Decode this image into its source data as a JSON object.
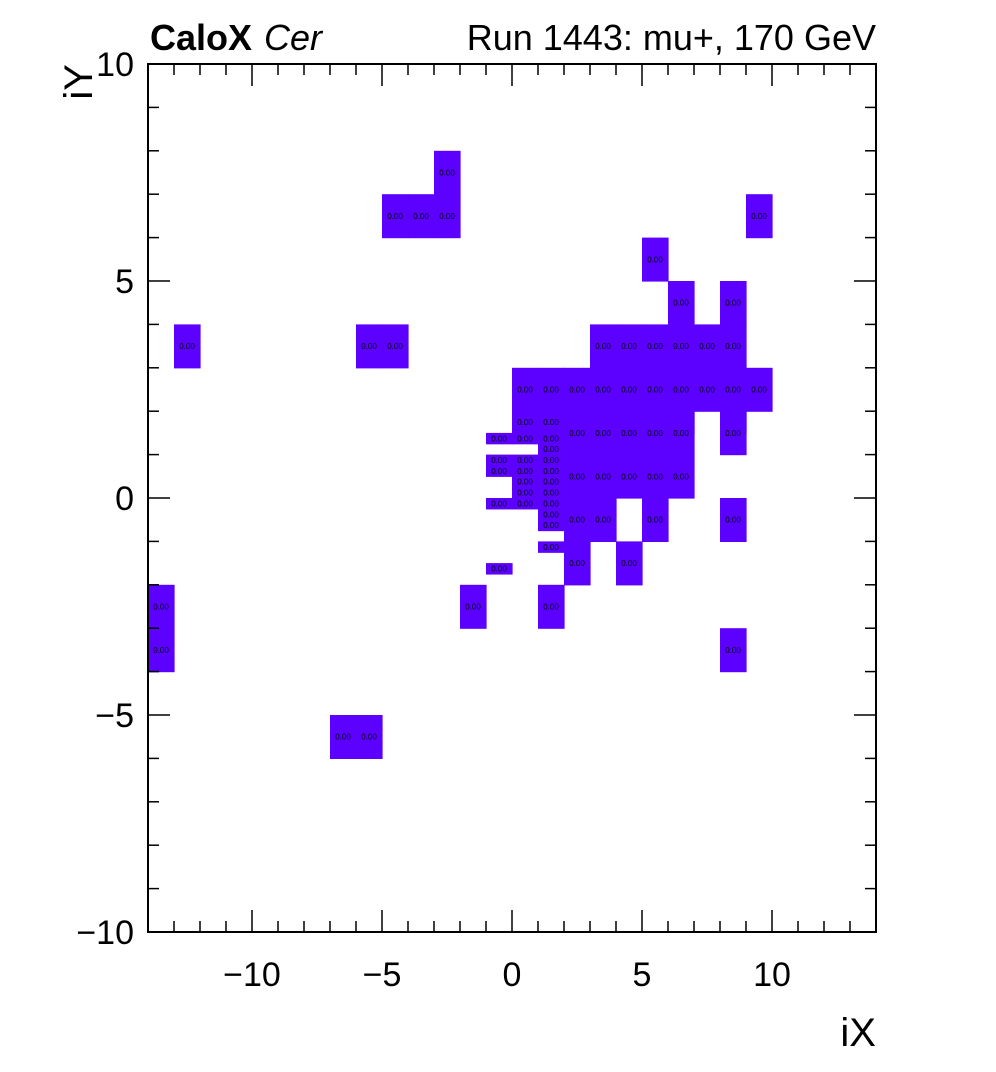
{
  "header": {
    "brand": "CaloX",
    "channel": "Cer",
    "run": "Run 1443: mu+, 170 GeV"
  },
  "colors": {
    "cell": "#5c00ff",
    "axis": "#000000",
    "background": "#ffffff"
  },
  "chart_data": {
    "type": "heatmap",
    "xlabel": "iX",
    "ylabel": "iY",
    "xlim": [
      -14,
      14
    ],
    "ylim": [
      -10,
      10
    ],
    "xticks": [
      {
        "value": -10,
        "label": "−10"
      },
      {
        "value": -5,
        "label": "−5"
      },
      {
        "value": 0,
        "label": "0"
      },
      {
        "value": 5,
        "label": "5"
      },
      {
        "value": 10,
        "label": "10"
      }
    ],
    "yticks": [
      {
        "value": -10,
        "label": "−10"
      },
      {
        "value": -5,
        "label": "−5"
      },
      {
        "value": 0,
        "label": "0"
      },
      {
        "value": 5,
        "label": "5"
      },
      {
        "value": 10,
        "label": "10"
      }
    ],
    "grid": false,
    "legend": "none",
    "cells": [
      {
        "x0": -3,
        "x1": -2,
        "y0": 7,
        "y1": 8,
        "label": "0.00"
      },
      {
        "x0": -5,
        "x1": -4,
        "y0": 6,
        "y1": 7,
        "label": "0.00"
      },
      {
        "x0": -4,
        "x1": -3,
        "y0": 6,
        "y1": 7,
        "label": "0.00"
      },
      {
        "x0": -3,
        "x1": -2,
        "y0": 6,
        "y1": 7,
        "label": "0.00"
      },
      {
        "x0": 9,
        "x1": 10,
        "y0": 6,
        "y1": 7,
        "label": "0.00"
      },
      {
        "x0": 5,
        "x1": 6,
        "y0": 5,
        "y1": 6,
        "label": "0.00"
      },
      {
        "x0": 6,
        "x1": 7,
        "y0": 4,
        "y1": 5,
        "label": "0.00"
      },
      {
        "x0": 8,
        "x1": 9,
        "y0": 4,
        "y1": 5,
        "label": "0.00"
      },
      {
        "x0": -13,
        "x1": -12,
        "y0": 3,
        "y1": 4,
        "label": "0.00"
      },
      {
        "x0": -6,
        "x1": -5,
        "y0": 3,
        "y1": 4,
        "label": "0.00"
      },
      {
        "x0": -5,
        "x1": -4,
        "y0": 3,
        "y1": 4,
        "label": "0.00"
      },
      {
        "x0": 3,
        "x1": 4,
        "y0": 3,
        "y1": 4,
        "label": "0.00"
      },
      {
        "x0": 4,
        "x1": 5,
        "y0": 3,
        "y1": 4,
        "label": "0.00"
      },
      {
        "x0": 5,
        "x1": 6,
        "y0": 3,
        "y1": 4,
        "label": "0.00"
      },
      {
        "x0": 6,
        "x1": 7,
        "y0": 3,
        "y1": 4,
        "label": "0.00"
      },
      {
        "x0": 7,
        "x1": 8,
        "y0": 3,
        "y1": 4,
        "label": "0.00"
      },
      {
        "x0": 8,
        "x1": 9,
        "y0": 3,
        "y1": 4,
        "label": "0.00"
      },
      {
        "x0": 0,
        "x1": 1,
        "y0": 2,
        "y1": 3,
        "label": "0.00"
      },
      {
        "x0": 1,
        "x1": 2,
        "y0": 2,
        "y1": 3,
        "label": "0.00"
      },
      {
        "x0": 2,
        "x1": 3,
        "y0": 2,
        "y1": 3,
        "label": "0.00"
      },
      {
        "x0": 3,
        "x1": 4,
        "y0": 2,
        "y1": 3,
        "label": "0.00"
      },
      {
        "x0": 4,
        "x1": 5,
        "y0": 2,
        "y1": 3,
        "label": "0.00"
      },
      {
        "x0": 5,
        "x1": 6,
        "y0": 2,
        "y1": 3,
        "label": "0.00"
      },
      {
        "x0": 6,
        "x1": 7,
        "y0": 2,
        "y1": 3,
        "label": "0.00"
      },
      {
        "x0": 7,
        "x1": 8,
        "y0": 2,
        "y1": 3,
        "label": "0.00"
      },
      {
        "x0": 8,
        "x1": 9,
        "y0": 2,
        "y1": 3,
        "label": "0.00"
      },
      {
        "x0": 9,
        "x1": 10,
        "y0": 2,
        "y1": 3,
        "label": "0.00"
      },
      {
        "x0": 0,
        "x1": 1,
        "y0": 1.5,
        "y1": 2,
        "label": "0.00"
      },
      {
        "x0": 1,
        "x1": 2,
        "y0": 1.5,
        "y1": 2,
        "label": "0.00"
      },
      {
        "x0": 2,
        "x1": 3,
        "y0": 1.5,
        "y1": 2,
        "label": ""
      },
      {
        "x0": 3,
        "x1": 4,
        "y0": 1.5,
        "y1": 2,
        "label": ""
      },
      {
        "x0": 4,
        "x1": 5,
        "y0": 1.5,
        "y1": 2,
        "label": ""
      },
      {
        "x0": 5,
        "x1": 6,
        "y0": 1.5,
        "y1": 2,
        "label": ""
      },
      {
        "x0": 6,
        "x1": 7,
        "y0": 1.5,
        "y1": 2,
        "label": ""
      },
      {
        "x0": 8,
        "x1": 9,
        "y0": 1.5,
        "y1": 2,
        "label": ""
      },
      {
        "x0": 2,
        "x1": 3,
        "y0": 1,
        "y1": 2,
        "label": "0.00"
      },
      {
        "x0": 3,
        "x1": 4,
        "y0": 1,
        "y1": 2,
        "label": "0.00"
      },
      {
        "x0": 4,
        "x1": 5,
        "y0": 1,
        "y1": 2,
        "label": "0.00"
      },
      {
        "x0": 5,
        "x1": 6,
        "y0": 1,
        "y1": 2,
        "label": "0.00"
      },
      {
        "x0": 6,
        "x1": 7,
        "y0": 1,
        "y1": 2,
        "label": "0.00"
      },
      {
        "x0": 8,
        "x1": 9,
        "y0": 1,
        "y1": 2,
        "label": "0.00"
      },
      {
        "x0": -1,
        "x1": 0,
        "y0": 1.25,
        "y1": 1.5,
        "label": "0.00"
      },
      {
        "x0": 0,
        "x1": 1,
        "y0": 1.25,
        "y1": 1.5,
        "label": "0.00"
      },
      {
        "x0": 1,
        "x1": 2,
        "y0": 1.25,
        "y1": 1.5,
        "label": "0.00"
      },
      {
        "x0": 1,
        "x1": 2,
        "y0": 1,
        "y1": 1.25,
        "label": "0.00"
      },
      {
        "x0": -1,
        "x1": 0,
        "y0": 0.75,
        "y1": 1,
        "label": "0.00"
      },
      {
        "x0": 0,
        "x1": 1,
        "y0": 0.75,
        "y1": 1,
        "label": "0.00"
      },
      {
        "x0": 1,
        "x1": 2,
        "y0": 0.75,
        "y1": 1,
        "label": "0.00"
      },
      {
        "x0": -1,
        "x1": 0,
        "y0": 0.5,
        "y1": 0.75,
        "label": "0.00"
      },
      {
        "x0": 0,
        "x1": 1,
        "y0": 0.5,
        "y1": 0.75,
        "label": "0.00"
      },
      {
        "x0": 1,
        "x1": 2,
        "y0": 0.5,
        "y1": 0.75,
        "label": "0.00"
      },
      {
        "x0": 2,
        "x1": 3,
        "y0": 0,
        "y1": 1,
        "label": "0.00"
      },
      {
        "x0": 3,
        "x1": 4,
        "y0": 0,
        "y1": 1,
        "label": "0.00"
      },
      {
        "x0": 4,
        "x1": 5,
        "y0": 0,
        "y1": 1,
        "label": "0.00"
      },
      {
        "x0": 5,
        "x1": 6,
        "y0": 0,
        "y1": 1,
        "label": "0.00"
      },
      {
        "x0": 6,
        "x1": 7,
        "y0": 0,
        "y1": 1,
        "label": "0.00"
      },
      {
        "x0": 0,
        "x1": 1,
        "y0": 0.25,
        "y1": 0.5,
        "label": "0.00"
      },
      {
        "x0": 1,
        "x1": 2,
        "y0": 0.25,
        "y1": 0.5,
        "label": "0.00"
      },
      {
        "x0": 0,
        "x1": 1,
        "y0": 0,
        "y1": 0.25,
        "label": "0.00"
      },
      {
        "x0": 1,
        "x1": 2,
        "y0": 0,
        "y1": 0.25,
        "label": "0.00"
      },
      {
        "x0": -1,
        "x1": 0,
        "y0": -0.25,
        "y1": 0,
        "label": "0.00"
      },
      {
        "x0": 0,
        "x1": 1,
        "y0": -0.25,
        "y1": 0,
        "label": "0.00"
      },
      {
        "x0": 1,
        "x1": 2,
        "y0": -0.25,
        "y1": 0,
        "label": "0.00"
      },
      {
        "x0": 1,
        "x1": 2,
        "y0": -0.5,
        "y1": -0.25,
        "label": "0.00"
      },
      {
        "x0": 1,
        "x1": 2,
        "y0": -0.75,
        "y1": -0.5,
        "label": "0.00"
      },
      {
        "x0": 2,
        "x1": 3,
        "y0": -1,
        "y1": 0,
        "label": "0.00"
      },
      {
        "x0": 3,
        "x1": 4,
        "y0": -1,
        "y1": 0,
        "label": "0.00"
      },
      {
        "x0": 5,
        "x1": 6,
        "y0": -1,
        "y1": 0,
        "label": "0.00"
      },
      {
        "x0": 8,
        "x1": 9,
        "y0": -1,
        "y1": 0,
        "label": "0.00"
      },
      {
        "x0": 1,
        "x1": 2,
        "y0": -1.25,
        "y1": -1,
        "label": "0.00"
      },
      {
        "x0": 2,
        "x1": 3,
        "y0": -2,
        "y1": -1,
        "label": "0.00"
      },
      {
        "x0": 4,
        "x1": 5,
        "y0": -2,
        "y1": -1,
        "label": "0.00"
      },
      {
        "x0": -1,
        "x1": 0,
        "y0": -1.75,
        "y1": -1.5,
        "label": "0.00"
      },
      {
        "x0": -14,
        "x1": -13,
        "y0": -3,
        "y1": -2,
        "label": "0.00"
      },
      {
        "x0": -2,
        "x1": -1,
        "y0": -3,
        "y1": -2,
        "label": "0.00"
      },
      {
        "x0": 1,
        "x1": 2,
        "y0": -3,
        "y1": -2,
        "label": "0.00"
      },
      {
        "x0": -14,
        "x1": -13,
        "y0": -4,
        "y1": -3,
        "label": "0.00"
      },
      {
        "x0": 8,
        "x1": 9,
        "y0": -4,
        "y1": -3,
        "label": "0.00"
      },
      {
        "x0": -7,
        "x1": -6,
        "y0": -6,
        "y1": -5,
        "label": "0.00"
      },
      {
        "x0": -6,
        "x1": -5,
        "y0": -6,
        "y1": -5,
        "label": "0.00"
      }
    ]
  }
}
